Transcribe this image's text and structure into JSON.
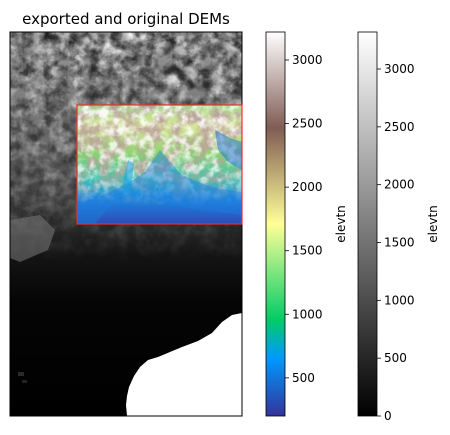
{
  "chart_data": {
    "type": "heatmap",
    "title": "exported and original DEMs",
    "colorbars": [
      {
        "name": "terrain",
        "label": "elevtn",
        "range": [
          200,
          3220
        ],
        "ticks": [
          500,
          1000,
          1500,
          2000,
          2500,
          3000
        ]
      },
      {
        "name": "grey",
        "label": "elevtn",
        "range": [
          0,
          3320
        ],
        "ticks": [
          0,
          500,
          1000,
          1500,
          2000,
          2500,
          3000
        ]
      }
    ],
    "overlay": {
      "description": "exported DEM extent",
      "outline_color": "#e8312b"
    }
  }
}
